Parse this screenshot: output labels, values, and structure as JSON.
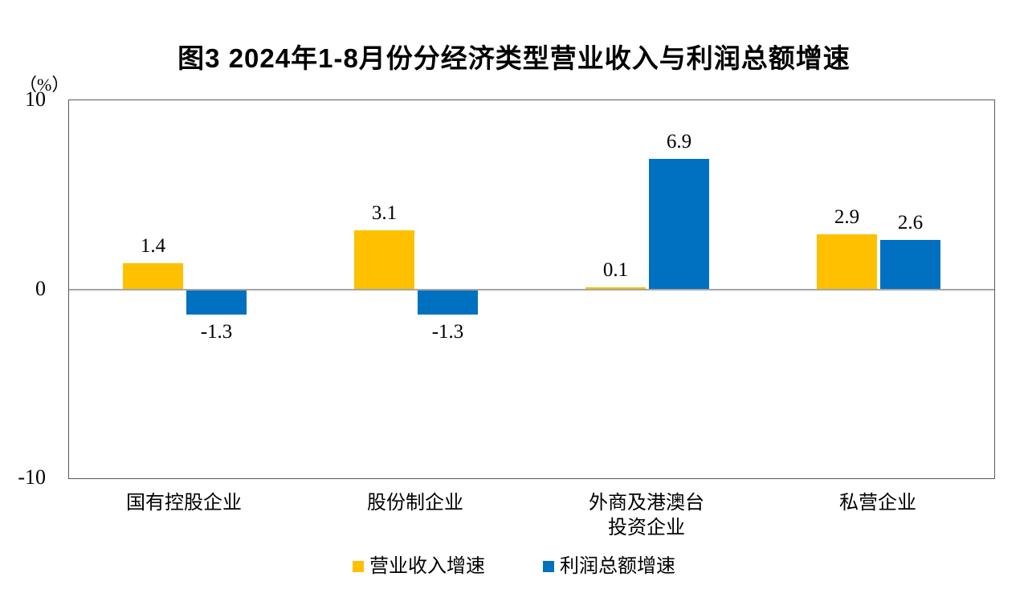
{
  "title": "图3  2024年1-8月份分经济类型营业收入与利润总额增速",
  "axis_unit": "（%）",
  "chart_data": {
    "type": "bar",
    "title": "图3  2024年1-8月份分经济类型营业收入与利润总额增速",
    "categories": [
      "国有控股企业",
      "股份制企业",
      "外商及港澳台\n投资企业",
      "私营企业"
    ],
    "series": [
      {
        "name": "营业收入增速",
        "color": "#FFC000",
        "values": [
          1.4,
          3.1,
          0.1,
          2.9
        ]
      },
      {
        "name": "利润总额增速",
        "color": "#0070C0",
        "values": [
          -1.3,
          -1.3,
          6.9,
          2.6
        ]
      }
    ],
    "ylabel": "（%）",
    "xlabel": "",
    "ylim": [
      -10,
      10
    ],
    "yticks": [
      10,
      0,
      -10
    ],
    "grid": false,
    "legend_position": "bottom",
    "zero_line_color": "#A6A6A6",
    "border_color": "#595959",
    "data_labels": [
      "1.4",
      "3.1",
      "0.1",
      "2.9",
      "-1.3",
      "-1.3",
      "6.9",
      "2.6"
    ]
  }
}
